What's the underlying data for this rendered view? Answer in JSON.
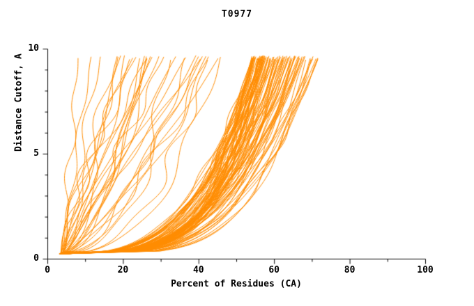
{
  "chart_data": {
    "type": "line",
    "title": "T0977",
    "xlabel": "Percent of Residues (CA)",
    "ylabel": "Distance Cutoff, A",
    "xlim": [
      0,
      100
    ],
    "ylim": [
      0,
      10
    ],
    "x_ticks": [
      0,
      20,
      40,
      60,
      80,
      100
    ],
    "y_ticks": [
      0,
      5,
      10
    ],
    "x_minor_step": 10,
    "y_minor_step": 1,
    "grid": false,
    "legend": null,
    "line_color": "#ff8c00",
    "axis_color": "#000000",
    "curve_model": {
      "description": "Approx. 130 overlapping monotonic GDT-style curves; each curve rises from (x_start, y_start) to (x_top, y_end) following x = x0+(xt-x0)*u^p plus a small sinusoidal wiggle. Main dense bundle tops out at 54-72% residues; scattered outlier models top out at 8-46%.",
      "y_start": 0.25,
      "y_end": 9.7,
      "x_start_range": [
        3,
        4.5
      ],
      "groups": [
        {
          "name": "main-bundle",
          "count": 100,
          "x_top_range": [
            54,
            72
          ],
          "x_top_bias": 1.5,
          "exponent_range": [
            0.2,
            0.35
          ],
          "wiggle_amp_range": [
            0.2,
            0.9
          ],
          "wiggle_freq_range": [
            0.8,
            2.5
          ]
        },
        {
          "name": "outliers",
          "count": 32,
          "x_top_range": [
            8,
            46
          ],
          "x_top_bias": 1.0,
          "exponent_range": [
            0.35,
            1.25
          ],
          "wiggle_amp_range": [
            0.4,
            2.2
          ],
          "wiggle_freq_range": [
            0.6,
            2.0
          ]
        }
      ]
    }
  }
}
